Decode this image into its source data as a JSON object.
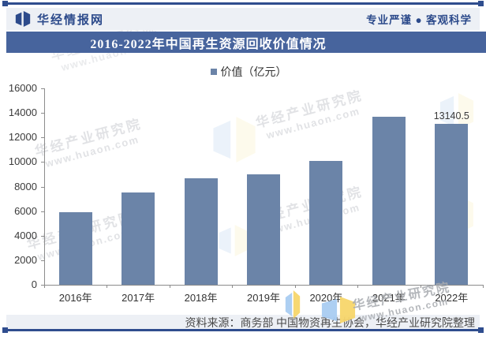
{
  "header": {
    "brand": "华经情报网",
    "slogan": "专业严谨 ● 客观科学"
  },
  "title": "2016-2022年中国再生资源回收价值情况",
  "legend": {
    "label": "价值（亿元）"
  },
  "chart_data": {
    "type": "bar",
    "title": "2016-2022年中国再生资源回收价值情况",
    "series_name": "价值（亿元）",
    "categories": [
      "2016年",
      "2017年",
      "2018年",
      "2019年",
      "2020年",
      "2021年",
      "2022年"
    ],
    "values": [
      5900,
      7550,
      8700,
      9000,
      10100,
      13700,
      13140.5
    ],
    "data_labels": [
      null,
      null,
      null,
      null,
      null,
      null,
      "13140.5"
    ],
    "ylabel": "",
    "xlabel": "",
    "ylim": [
      0,
      16000
    ],
    "ytick_step": 2000,
    "grid": false,
    "legend_position": "top",
    "bar_color": "#6b84a8"
  },
  "footer": {
    "source": "资料来源：商务部 中国物资再生协会，华经产业研究院整理"
  },
  "watermark": {
    "line1": "华经产业研究院",
    "line2": "www.huaon.com"
  },
  "colors": {
    "accent_navy": "#2f4d8e",
    "banner_blue": "#47649d",
    "bar_blue": "#6b84a8",
    "band_gray": "#edf0f5",
    "logo_blue": "#a9cdf2",
    "logo_yellow": "#f7d66b"
  }
}
